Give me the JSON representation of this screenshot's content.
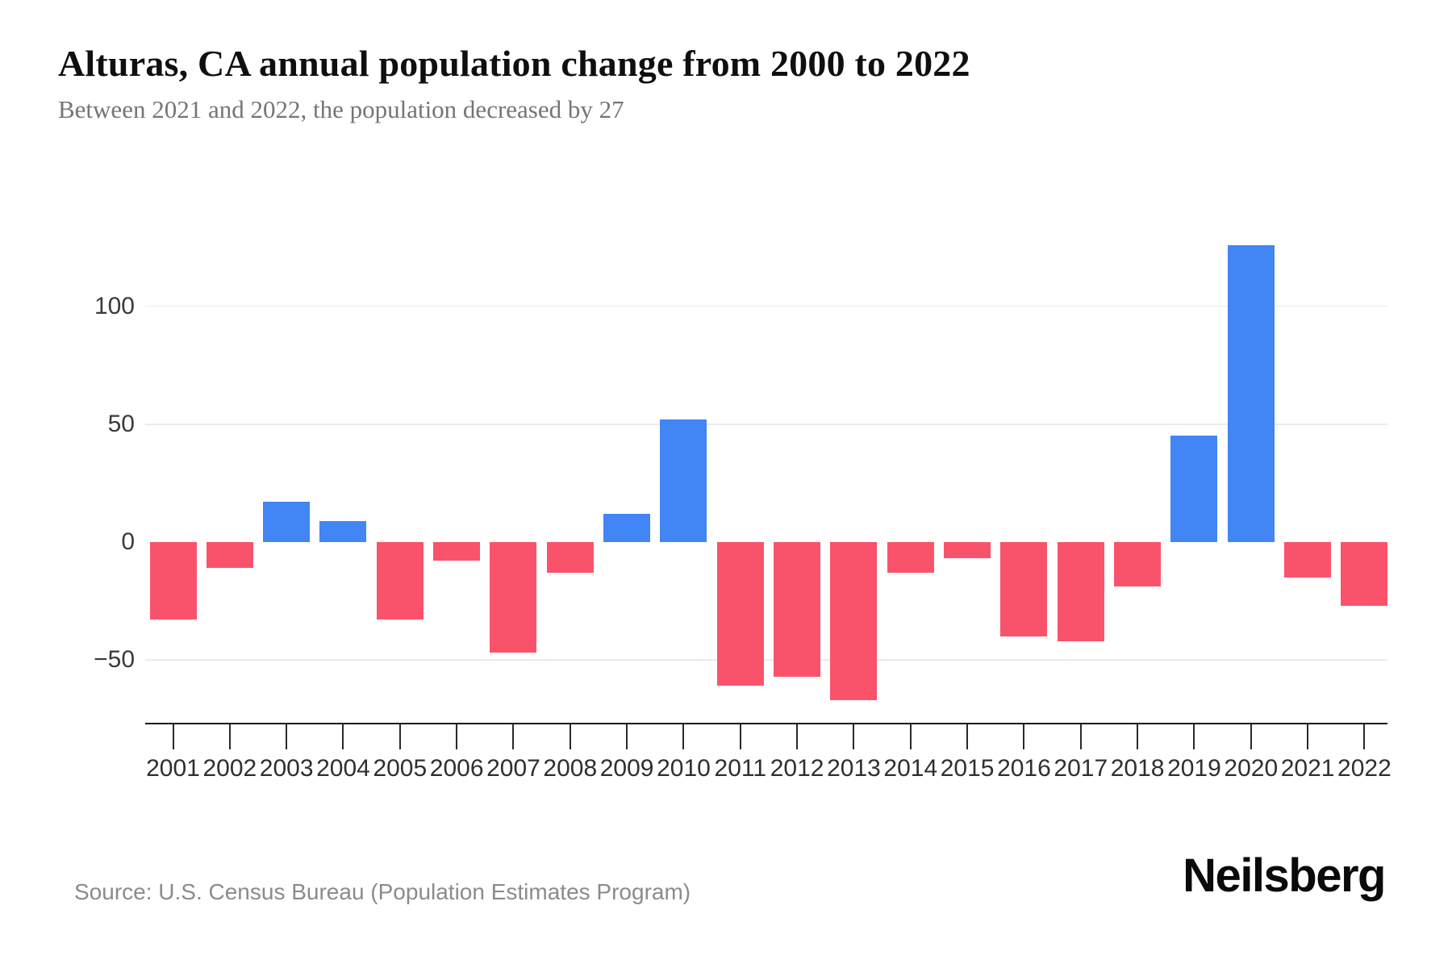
{
  "header": {
    "title": "Alturas, CA annual population change from 2000 to 2022",
    "subtitle": "Between 2021 and 2022, the population decreased by 27"
  },
  "chart_data": {
    "type": "bar",
    "title": "Alturas, CA annual population change from 2000 to 2022",
    "subtitle": "Between 2021 and 2022, the population decreased by 27",
    "categories": [
      "2001",
      "2002",
      "2003",
      "2004",
      "2005",
      "2006",
      "2007",
      "2008",
      "2009",
      "2010",
      "2011",
      "2012",
      "2013",
      "2014",
      "2015",
      "2016",
      "2017",
      "2018",
      "2019",
      "2020",
      "2021",
      "2022"
    ],
    "values": [
      -33,
      -11,
      17,
      9,
      -33,
      -8,
      -47,
      -13,
      12,
      52,
      -61,
      -57,
      -67,
      -13,
      -7,
      -40,
      -42,
      -19,
      45,
      126,
      -15,
      -27
    ],
    "xlabel": "",
    "ylabel": "",
    "ylim": [
      -77,
      130
    ],
    "yticks": [
      {
        "value": 100,
        "label": "100"
      },
      {
        "value": 50,
        "label": "50"
      },
      {
        "value": 0,
        "label": "0"
      },
      {
        "value": -50,
        "label": "−50"
      }
    ],
    "grid_values": [
      100,
      50,
      -50
    ],
    "grid": "horizontal-only",
    "legend": "none",
    "colors": {
      "positive": "#4285F4",
      "negative": "#F9536B",
      "gridline": "#ebebeb",
      "axis": "#1a1a1a"
    }
  },
  "footer": {
    "source": "Source: U.S. Census Bureau (Population Estimates Program)",
    "brand": "Neilsberg"
  }
}
